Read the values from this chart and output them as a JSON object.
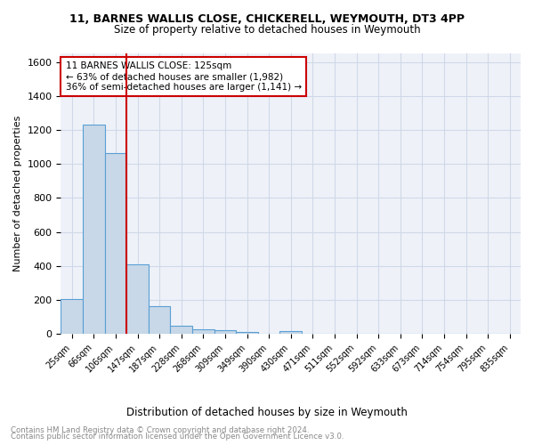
{
  "title1": "11, BARNES WALLIS CLOSE, CHICKERELL, WEYMOUTH, DT3 4PP",
  "title2": "Size of property relative to detached houses in Weymouth",
  "xlabel": "Distribution of detached houses by size in Weymouth",
  "ylabel": "Number of detached properties",
  "footnote1": "Contains HM Land Registry data © Crown copyright and database right 2024.",
  "footnote2": "Contains public sector information licensed under the Open Government Licence v3.0.",
  "bar_labels": [
    "25sqm",
    "66sqm",
    "106sqm",
    "147sqm",
    "187sqm",
    "228sqm",
    "268sqm",
    "309sqm",
    "349sqm",
    "390sqm",
    "430sqm",
    "471sqm",
    "511sqm",
    "552sqm",
    "592sqm",
    "633sqm",
    "673sqm",
    "714sqm",
    "754sqm",
    "795sqm",
    "835sqm"
  ],
  "bar_values": [
    205,
    1230,
    1065,
    410,
    163,
    48,
    27,
    20,
    14,
    0,
    15,
    0,
    0,
    0,
    0,
    0,
    0,
    0,
    0,
    0,
    0
  ],
  "bar_color": "#c8d8e8",
  "bar_edge_color": "#5a9fd4",
  "vline_x": 2.5,
  "vline_color": "#cc0000",
  "annotation_line1": "11 BARNES WALLIS CLOSE: 125sqm",
  "annotation_line2": "← 63% of detached houses are smaller (1,982)",
  "annotation_line3": "36% of semi-detached houses are larger (1,141) →",
  "annotation_box_color": "#ffffff",
  "annotation_box_edge": "#cc0000",
  "ylim": [
    0,
    1650
  ],
  "yticks": [
    0,
    200,
    400,
    600,
    800,
    1000,
    1200,
    1400,
    1600
  ],
  "grid_color": "#d0d8e8",
  "bg_color": "#eef2f8"
}
